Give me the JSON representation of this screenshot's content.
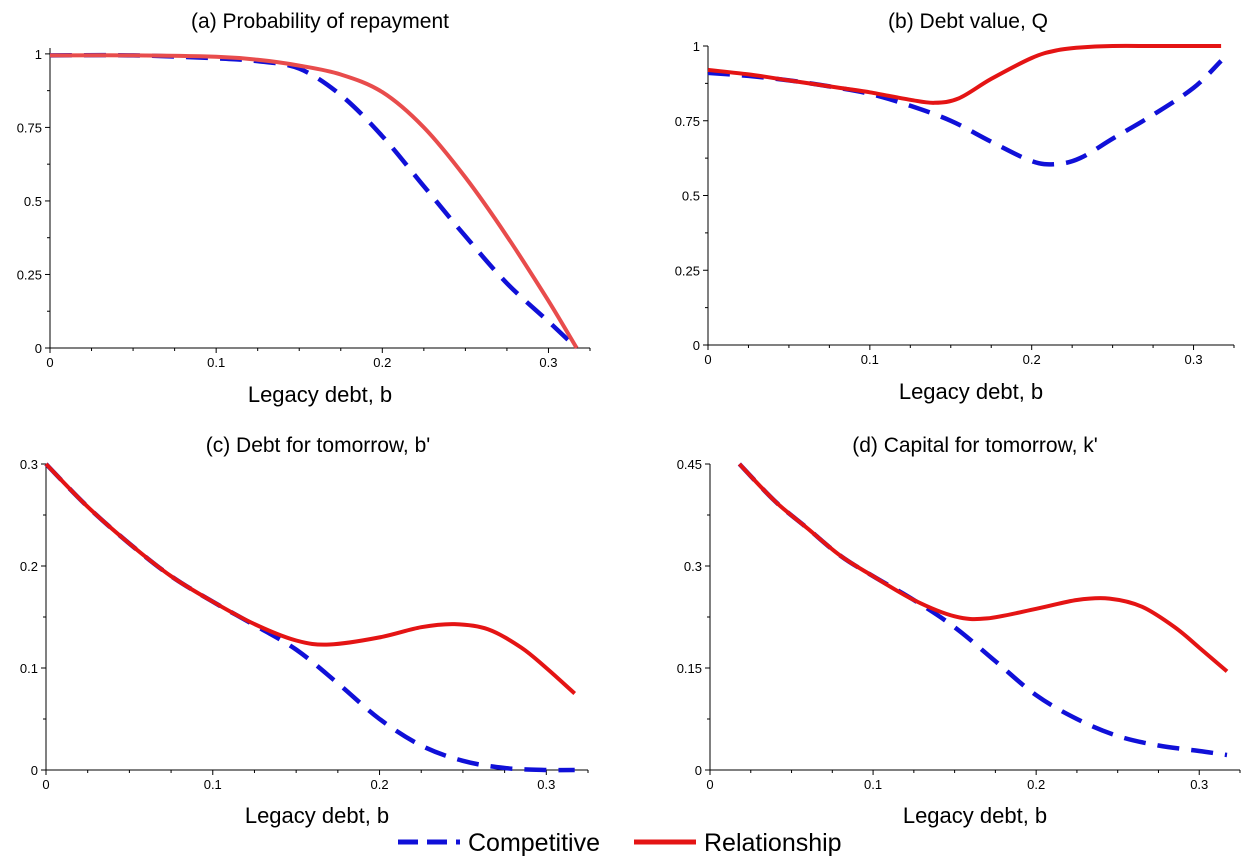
{
  "colors": {
    "competitive": "#1010d8",
    "relationship": "#e41414",
    "relationship_panel_a": "#e84c4c",
    "axis": "#000000"
  },
  "legend": {
    "competitive": "Competitive",
    "relationship": "Relationship",
    "position": "bottom-center"
  },
  "chart_data": [
    {
      "type": "line",
      "title": "(a) Probability of repayment",
      "xlabel": "Legacy debt, b",
      "ylabel": "",
      "xlim": [
        0,
        0.325
      ],
      "ylim": [
        0,
        1.02
      ],
      "xticks": [
        0,
        0.1,
        0.2,
        0.3
      ],
      "xtick_labels": [
        "0",
        "0.1",
        "0.2",
        "0.3"
      ],
      "yticks": [
        0,
        0.25,
        0.5,
        0.75,
        1
      ],
      "ytick_labels": [
        "0",
        "0.25",
        "0.5",
        "0.75",
        "1"
      ],
      "grid": false,
      "series": [
        {
          "name": "Competitive",
          "style": "dashed",
          "x": [
            0,
            0.05,
            0.1,
            0.125,
            0.15,
            0.175,
            0.2,
            0.225,
            0.25,
            0.275,
            0.3,
            0.317
          ],
          "y": [
            0.995,
            0.995,
            0.985,
            0.975,
            0.95,
            0.86,
            0.72,
            0.55,
            0.38,
            0.22,
            0.09,
            0.0
          ]
        },
        {
          "name": "Relationship",
          "style": "solid",
          "x": [
            0,
            0.05,
            0.1,
            0.125,
            0.15,
            0.175,
            0.2,
            0.225,
            0.25,
            0.275,
            0.3,
            0.317
          ],
          "y": [
            0.995,
            0.995,
            0.99,
            0.98,
            0.96,
            0.93,
            0.87,
            0.75,
            0.58,
            0.38,
            0.16,
            0.0
          ]
        }
      ]
    },
    {
      "type": "line",
      "title": "(b) Debt value, Q",
      "xlabel": "Legacy debt, b",
      "ylabel": "",
      "xlim": [
        0,
        0.325
      ],
      "ylim": [
        0,
        1.0
      ],
      "xticks": [
        0,
        0.1,
        0.2,
        0.3
      ],
      "xtick_labels": [
        "0",
        "0.1",
        "0.2",
        "0.3"
      ],
      "yticks": [
        0,
        0.25,
        0.5,
        0.75,
        1
      ],
      "ytick_labels": [
        "0",
        "0.25",
        "0.5",
        "0.75",
        "1"
      ],
      "grid": false,
      "series": [
        {
          "name": "Competitive",
          "style": "dashed",
          "x": [
            0,
            0.025,
            0.05,
            0.075,
            0.1,
            0.125,
            0.15,
            0.175,
            0.2,
            0.215,
            0.23,
            0.25,
            0.275,
            0.3,
            0.317
          ],
          "y": [
            0.91,
            0.9,
            0.885,
            0.865,
            0.84,
            0.8,
            0.75,
            0.68,
            0.615,
            0.605,
            0.625,
            0.69,
            0.77,
            0.86,
            0.95
          ]
        },
        {
          "name": "Relationship",
          "style": "solid",
          "x": [
            0,
            0.025,
            0.05,
            0.075,
            0.1,
            0.125,
            0.14,
            0.155,
            0.175,
            0.2,
            0.215,
            0.23,
            0.25,
            0.275,
            0.3,
            0.317
          ],
          "y": [
            0.92,
            0.905,
            0.885,
            0.865,
            0.845,
            0.82,
            0.81,
            0.825,
            0.89,
            0.96,
            0.985,
            0.995,
            1.0,
            1.0,
            1.0,
            1.0
          ]
        }
      ]
    },
    {
      "type": "line",
      "title": "(c) Debt for tomorrow, b'",
      "xlabel": "Legacy debt, b",
      "ylabel": "",
      "xlim": [
        0,
        0.325
      ],
      "ylim": [
        0,
        0.3
      ],
      "xticks": [
        0,
        0.1,
        0.2,
        0.3
      ],
      "xtick_labels": [
        "0",
        "0.1",
        "0.2",
        "0.3"
      ],
      "yticks": [
        0,
        0.1,
        0.2,
        0.3
      ],
      "ytick_labels": [
        "0",
        "0.1",
        "0.2",
        "0.3"
      ],
      "grid": false,
      "series": [
        {
          "name": "Competitive",
          "style": "dashed",
          "x": [
            0,
            0.025,
            0.05,
            0.075,
            0.1,
            0.125,
            0.15,
            0.175,
            0.2,
            0.225,
            0.25,
            0.275,
            0.3,
            0.317
          ],
          "y": [
            0.3,
            0.258,
            0.222,
            0.19,
            0.165,
            0.142,
            0.118,
            0.085,
            0.05,
            0.024,
            0.009,
            0.002,
            0.0,
            0.0
          ]
        },
        {
          "name": "Relationship",
          "style": "solid",
          "x": [
            0,
            0.025,
            0.05,
            0.075,
            0.1,
            0.125,
            0.15,
            0.17,
            0.2,
            0.225,
            0.245,
            0.265,
            0.285,
            0.3,
            0.317
          ],
          "y": [
            0.3,
            0.258,
            0.222,
            0.19,
            0.165,
            0.143,
            0.127,
            0.123,
            0.13,
            0.14,
            0.143,
            0.138,
            0.12,
            0.1,
            0.075
          ]
        }
      ]
    },
    {
      "type": "line",
      "title": "(d) Capital for tomorrow, k'",
      "xlabel": "Legacy debt, b",
      "ylabel": "",
      "xlim": [
        0,
        0.325
      ],
      "ylim": [
        0,
        0.45
      ],
      "xticks": [
        0,
        0.1,
        0.2,
        0.3
      ],
      "xtick_labels": [
        "0",
        "0.1",
        "0.2",
        "0.3"
      ],
      "yticks": [
        0,
        0.15,
        0.3,
        0.45
      ],
      "ytick_labels": [
        "0",
        "0.15",
        "0.3",
        "0.45"
      ],
      "grid": false,
      "series": [
        {
          "name": "Competitive",
          "style": "dashed",
          "x": [
            0.018,
            0.04,
            0.06,
            0.08,
            0.1,
            0.125,
            0.15,
            0.175,
            0.2,
            0.225,
            0.25,
            0.275,
            0.3,
            0.317
          ],
          "y": [
            0.45,
            0.395,
            0.355,
            0.315,
            0.285,
            0.25,
            0.21,
            0.16,
            0.11,
            0.075,
            0.05,
            0.036,
            0.028,
            0.022
          ]
        },
        {
          "name": "Relationship",
          "style": "solid",
          "x": [
            0.018,
            0.04,
            0.06,
            0.08,
            0.1,
            0.125,
            0.15,
            0.17,
            0.2,
            0.225,
            0.245,
            0.265,
            0.285,
            0.3,
            0.317
          ],
          "y": [
            0.45,
            0.395,
            0.355,
            0.315,
            0.285,
            0.25,
            0.226,
            0.223,
            0.237,
            0.25,
            0.252,
            0.24,
            0.21,
            0.18,
            0.145
          ]
        }
      ]
    }
  ]
}
